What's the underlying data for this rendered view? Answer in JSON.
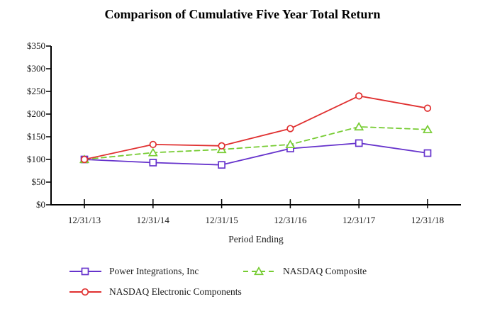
{
  "title": "Comparison of Cumulative Five Year Total Return",
  "chart_data": {
    "type": "line",
    "title": "Comparison of Cumulative Five Year Total Return",
    "categories": [
      "12/31/13",
      "12/31/14",
      "12/31/15",
      "12/31/16",
      "12/31/17",
      "12/31/18"
    ],
    "series": [
      {
        "name": "Power Integrations, Inc",
        "color": "#6633cc",
        "marker": "square",
        "line_style": "solid",
        "values": [
          100,
          93,
          88,
          124,
          136,
          114
        ]
      },
      {
        "name": "NASDAQ Composite",
        "color": "#77cc33",
        "marker": "triangle",
        "line_style": "dashed",
        "values": [
          100,
          115,
          122,
          133,
          172,
          166
        ]
      },
      {
        "name": "NASDAQ Electronic Components",
        "color": "#e03030",
        "marker": "circle",
        "line_style": "solid",
        "values": [
          100,
          133,
          130,
          168,
          240,
          213
        ]
      }
    ],
    "xlabel": "Period Ending",
    "ylabel": "",
    "ylim": [
      0,
      350
    ],
    "ytick_interval": 50,
    "y_tick_labels": [
      "$0",
      "$50",
      "$100",
      "$150",
      "$200",
      "$250",
      "$300",
      "$350"
    ],
    "grid": false,
    "legend_position": "bottom",
    "axis_color": "#000000"
  }
}
